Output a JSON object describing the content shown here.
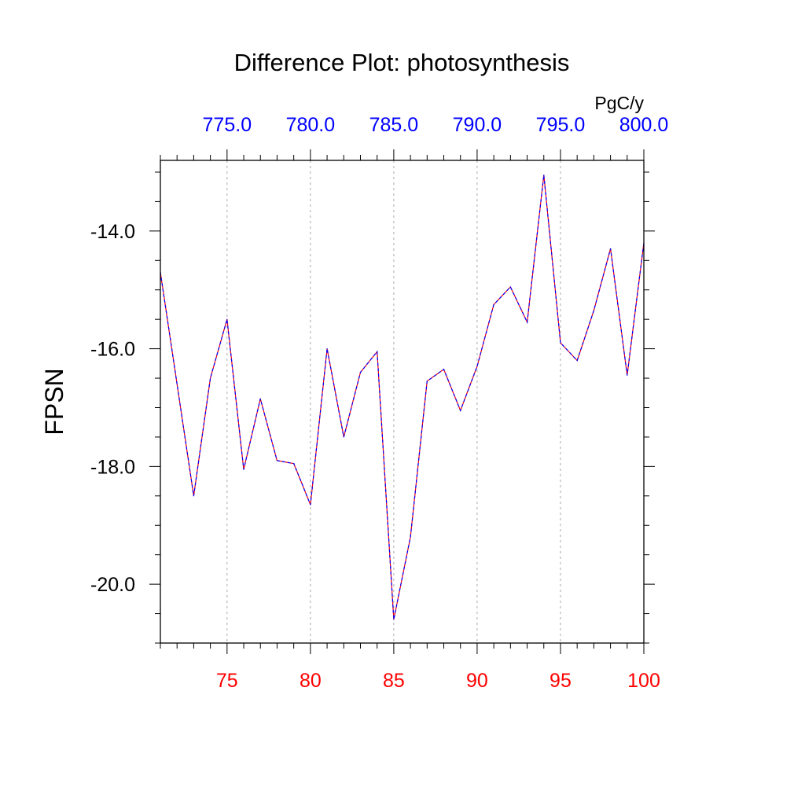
{
  "chart_data": {
    "type": "line",
    "title": "Difference Plot: photosynthesis",
    "ylabel": "FPSN",
    "units_label": "PgC/y",
    "colors": {
      "bottom_axis": "#ff0000",
      "top_axis": "#0000ff",
      "line_a": "#ff0000",
      "line_b": "#0000ff",
      "grid": "#aaaaaa"
    },
    "grid": "vertical dashed at major x ticks",
    "xlim": [
      71,
      100
    ],
    "ylim": [
      -21.0,
      -12.8
    ],
    "bottom_ticks": [
      {
        "value": 75,
        "label": "75"
      },
      {
        "value": 80,
        "label": "80"
      },
      {
        "value": 85,
        "label": "85"
      },
      {
        "value": 90,
        "label": "90"
      },
      {
        "value": 95,
        "label": "95"
      },
      {
        "value": 100,
        "label": "100"
      }
    ],
    "top_ticks": [
      {
        "value": 75,
        "label": "775.0"
      },
      {
        "value": 80,
        "label": "780.0"
      },
      {
        "value": 85,
        "label": "785.0"
      },
      {
        "value": 90,
        "label": "790.0"
      },
      {
        "value": 95,
        "label": "795.0"
      },
      {
        "value": 100,
        "label": "800.0"
      }
    ],
    "y_ticks": [
      {
        "value": -14.0,
        "label": "-14.0"
      },
      {
        "value": -16.0,
        "label": "-16.0"
      },
      {
        "value": -18.0,
        "label": "-18.0"
      },
      {
        "value": -20.0,
        "label": "-20.0"
      }
    ],
    "x": [
      71,
      72,
      73,
      74,
      75,
      76,
      77,
      78,
      79,
      80,
      81,
      82,
      83,
      84,
      85,
      86,
      87,
      88,
      89,
      90,
      91,
      92,
      93,
      94,
      95,
      96,
      97,
      98,
      99,
      100
    ],
    "series": [
      {
        "values": [
          -14.7,
          -16.6,
          -18.5,
          -16.5,
          -15.5,
          -18.05,
          -16.85,
          -17.9,
          -17.95,
          -18.65,
          -16.0,
          -17.5,
          -16.4,
          -16.05,
          -20.6,
          -19.2,
          -16.55,
          -16.35,
          -17.05,
          -16.3,
          -15.25,
          -14.95,
          -15.55,
          -13.05,
          -15.9,
          -16.2,
          -15.35,
          -14.3,
          -16.45,
          -14.2
        ]
      }
    ]
  }
}
